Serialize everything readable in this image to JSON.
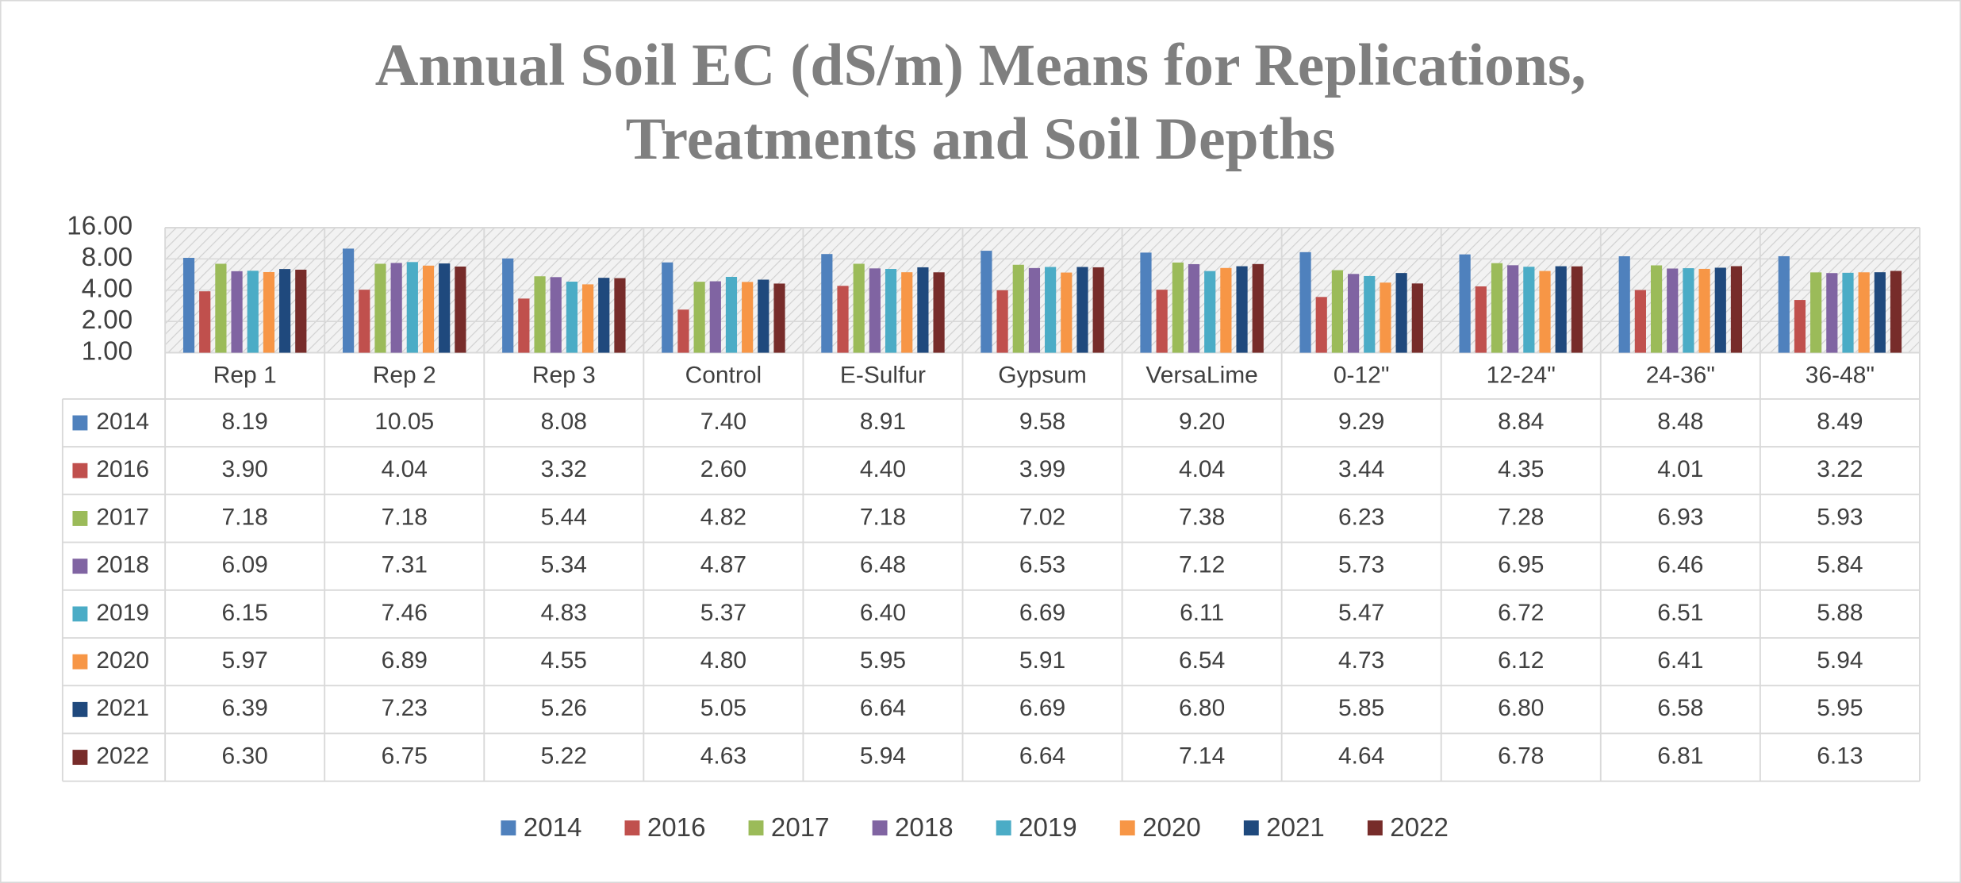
{
  "chart_data": {
    "type": "bar",
    "title": [
      "Annual Soil EC (dS/m) Means for Replications,",
      "Treatments and Soil Depths"
    ],
    "categories": [
      "Rep 1",
      "Rep 2",
      "Rep 3",
      "Control",
      "E-Sulfur",
      "Gypsum",
      "VersaLime",
      "0-12\"",
      "12-24\"",
      "24-36\"",
      "36-48\""
    ],
    "ylim": [
      1,
      16
    ],
    "yticks": [
      {
        "value": 1,
        "label": "1.00"
      },
      {
        "value": 2,
        "label": "2.00"
      },
      {
        "value": 4,
        "label": "4.00"
      },
      {
        "value": 8,
        "label": "8.00"
      },
      {
        "value": 16,
        "label": "16.00"
      }
    ],
    "log_scale": true,
    "grid": true,
    "legend": "bottom",
    "series": [
      {
        "name": "2014",
        "color": "#4f81bd",
        "values": [
          8.19,
          10.05,
          8.08,
          7.4,
          8.91,
          9.58,
          9.2,
          9.29,
          8.84,
          8.48,
          8.49
        ],
        "value_labels": [
          "8.19",
          "10.05",
          "8.08",
          "7.40",
          "8.91",
          "9.58",
          "9.20",
          "9.29",
          "8.84",
          "8.48",
          "8.49"
        ]
      },
      {
        "name": "2016",
        "color": "#c0504d",
        "values": [
          3.9,
          4.04,
          3.32,
          2.6,
          4.4,
          3.99,
          4.04,
          3.44,
          4.35,
          4.01,
          3.22
        ],
        "value_labels": [
          "3.90",
          "4.04",
          "3.32",
          "2.60",
          "4.40",
          "3.99",
          "4.04",
          "3.44",
          "4.35",
          "4.01",
          "3.22"
        ]
      },
      {
        "name": "2017",
        "color": "#9bbb59",
        "values": [
          7.18,
          7.18,
          5.44,
          4.82,
          7.18,
          7.02,
          7.38,
          6.23,
          7.28,
          6.93,
          5.93
        ],
        "value_labels": [
          "7.18",
          "7.18",
          "5.44",
          "4.82",
          "7.18",
          "7.02",
          "7.38",
          "6.23",
          "7.28",
          "6.93",
          "5.93"
        ]
      },
      {
        "name": "2018",
        "color": "#8064a2",
        "values": [
          6.09,
          7.31,
          5.34,
          4.87,
          6.48,
          6.53,
          7.12,
          5.73,
          6.95,
          6.46,
          5.84
        ],
        "value_labels": [
          "6.09",
          "7.31",
          "5.34",
          "4.87",
          "6.48",
          "6.53",
          "7.12",
          "5.73",
          "6.95",
          "6.46",
          "5.84"
        ]
      },
      {
        "name": "2019",
        "color": "#4bacc6",
        "values": [
          6.15,
          7.46,
          4.83,
          5.37,
          6.4,
          6.69,
          6.11,
          5.47,
          6.72,
          6.51,
          5.88
        ],
        "value_labels": [
          "6.15",
          "7.46",
          "4.83",
          "5.37",
          "6.40",
          "6.69",
          "6.11",
          "5.47",
          "6.72",
          "6.51",
          "5.88"
        ]
      },
      {
        "name": "2020",
        "color": "#f79646",
        "values": [
          5.97,
          6.89,
          4.55,
          4.8,
          5.95,
          5.91,
          6.54,
          4.73,
          6.12,
          6.41,
          5.94
        ],
        "value_labels": [
          "5.97",
          "6.89",
          "4.55",
          "4.80",
          "5.95",
          "5.91",
          "6.54",
          "4.73",
          "6.12",
          "6.41",
          "5.94"
        ]
      },
      {
        "name": "2021",
        "color": "#1f497d",
        "values": [
          6.39,
          7.23,
          5.26,
          5.05,
          6.64,
          6.69,
          6.8,
          5.85,
          6.8,
          6.58,
          5.95
        ],
        "value_labels": [
          "6.39",
          "7.23",
          "5.26",
          "5.05",
          "6.64",
          "6.69",
          "6.80",
          "5.85",
          "6.80",
          "6.58",
          "5.95"
        ]
      },
      {
        "name": "2022",
        "color": "#772c2a",
        "values": [
          6.3,
          6.75,
          5.22,
          4.63,
          5.94,
          6.64,
          7.14,
          4.64,
          6.78,
          6.81,
          6.13
        ],
        "value_labels": [
          "6.30",
          "6.75",
          "5.22",
          "4.63",
          "5.94",
          "6.64",
          "7.14",
          "4.64",
          "6.78",
          "6.81",
          "6.13"
        ]
      }
    ]
  }
}
